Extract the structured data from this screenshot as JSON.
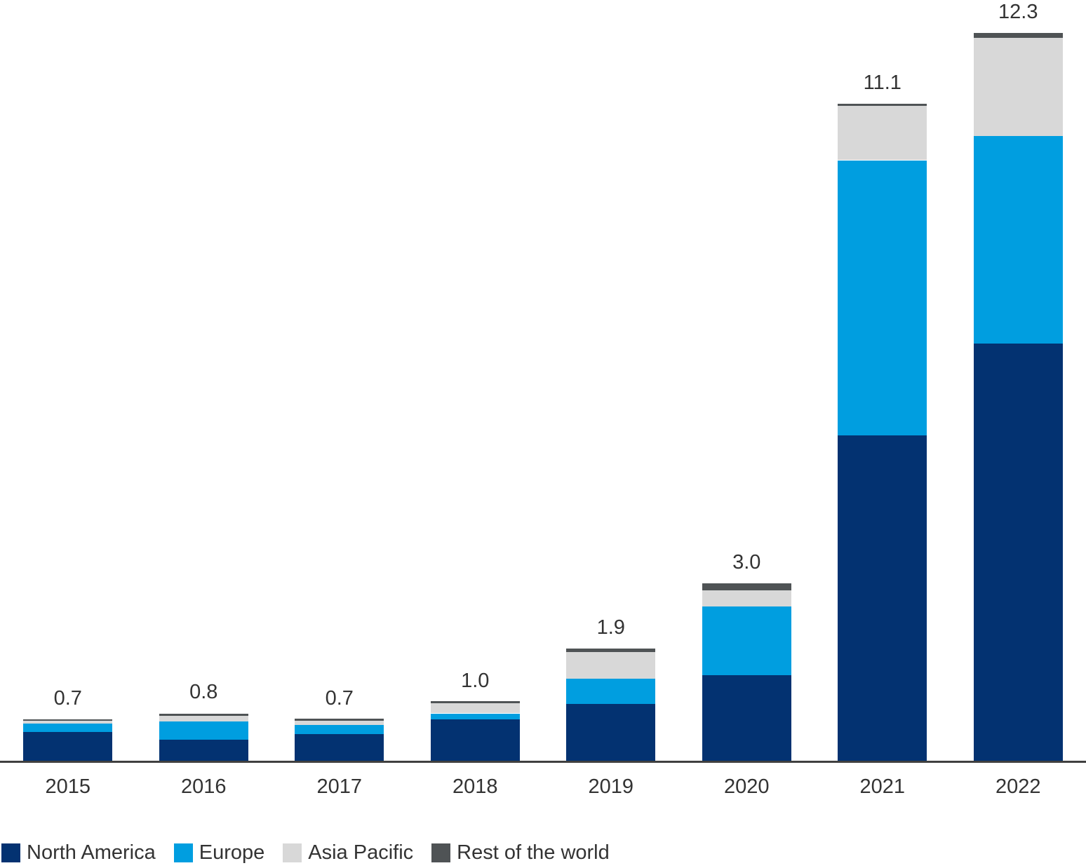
{
  "chart_data": {
    "type": "bar",
    "subtype": "stacked",
    "title": "",
    "xlabel": "",
    "ylabel": "",
    "grid": false,
    "legend_position": "bottom",
    "ylim": [
      0,
      12.3
    ],
    "categories": [
      "2015",
      "2016",
      "2017",
      "2018",
      "2019",
      "2020",
      "2021",
      "2022"
    ],
    "series": [
      {
        "name": "North America",
        "color": "#033271",
        "values": [
          0.48,
          0.35,
          0.45,
          0.7,
          0.96,
          1.44,
          5.5,
          7.05
        ]
      },
      {
        "name": "Europe",
        "color": "#009EE0",
        "values": [
          0.15,
          0.31,
          0.15,
          0.1,
          0.43,
          1.17,
          4.65,
          3.51
        ]
      },
      {
        "name": "Asia Pacific",
        "color": "#D8D8D8",
        "values": [
          0.05,
          0.1,
          0.07,
          0.17,
          0.45,
          0.27,
          0.92,
          1.66
        ]
      },
      {
        "name": "Rest of the world",
        "color": "#4F5355",
        "values": [
          0.02,
          0.04,
          0.03,
          0.03,
          0.06,
          0.12,
          0.03,
          0.08
        ]
      }
    ],
    "total_labels": [
      "0.7",
      "0.8",
      "0.7",
      "1.0",
      "1.9",
      "3.0",
      "11.1",
      "12.3"
    ]
  },
  "style": {
    "axis_line_color": "#404040",
    "text_color": "#333333",
    "background": "#FFFFFF"
  }
}
